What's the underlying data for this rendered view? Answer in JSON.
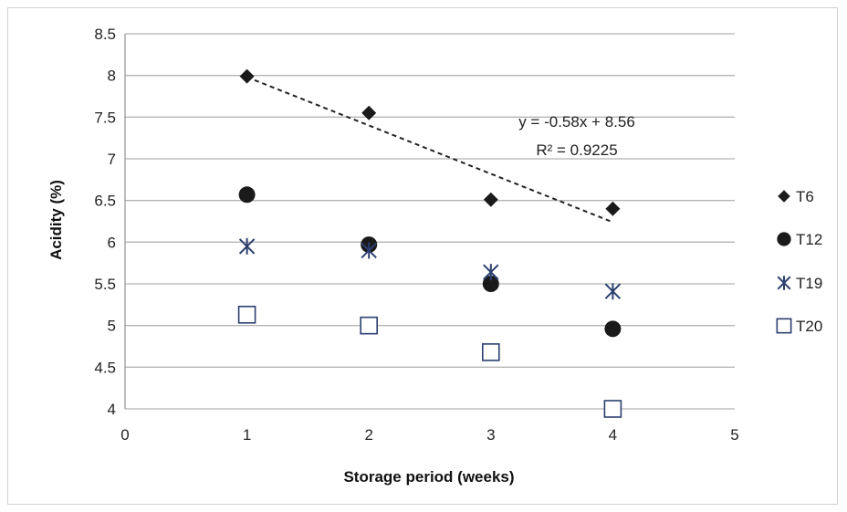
{
  "chart_data": {
    "type": "scatter",
    "title": "",
    "xlabel": "Storage period (weeks)",
    "ylabel": "Acidity (%)",
    "xlim": [
      0,
      5
    ],
    "ylim": [
      4,
      8.5
    ],
    "xticks": [
      "0",
      "1",
      "2",
      "3",
      "4",
      "5"
    ],
    "yticks": [
      "4",
      "4.5",
      "5",
      "5.5",
      "6",
      "6.5",
      "7",
      "7.5",
      "8",
      "8.5"
    ],
    "grid": "horizontal",
    "legend_position": "right",
    "series": [
      {
        "name": "T6",
        "marker": "diamond",
        "color": "#1a1a1a",
        "x": [
          1,
          2,
          3,
          4
        ],
        "y": [
          7.99,
          7.55,
          6.51,
          6.4
        ]
      },
      {
        "name": "T12",
        "marker": "circle",
        "color": "#1a1a1a",
        "x": [
          1,
          2,
          3,
          4
        ],
        "y": [
          6.57,
          5.97,
          5.5,
          4.96
        ]
      },
      {
        "name": "T19",
        "marker": "asterisk",
        "color": "#2b3f6e",
        "x": [
          1,
          2,
          3,
          4
        ],
        "y": [
          5.95,
          5.9,
          5.64,
          5.41
        ]
      },
      {
        "name": "T20",
        "marker": "square",
        "color": "#2b3f6e",
        "x": [
          1,
          2,
          3,
          4
        ],
        "y": [
          5.13,
          5.0,
          4.68,
          4.0
        ]
      }
    ],
    "trendline": {
      "series": "T6",
      "slope": -0.58,
      "intercept": 8.56,
      "x_range": [
        1,
        4
      ],
      "style": "dashed"
    },
    "annotations": [
      "y = -0.58x + 8.56",
      "R² = 0.9225"
    ]
  }
}
